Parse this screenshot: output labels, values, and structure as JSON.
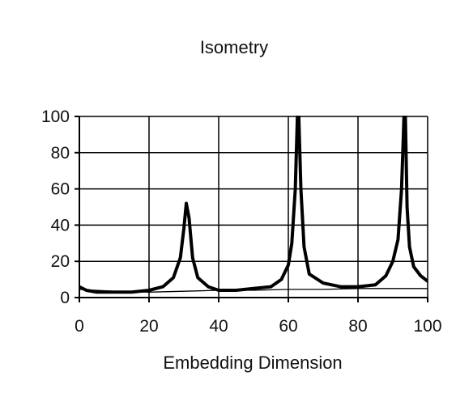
{
  "chart_data": {
    "type": "line",
    "title": "Isometry",
    "xlabel": "Embedding Dimension",
    "ylabel": "",
    "xlim": [
      0,
      100
    ],
    "ylim": [
      0,
      100
    ],
    "xticks": [
      0,
      20,
      40,
      60,
      80,
      100
    ],
    "yticks": [
      0,
      20,
      40,
      60,
      80,
      100
    ],
    "grid": true,
    "legend": "none",
    "series": [
      {
        "color": "#000000",
        "style": "thick",
        "x": [
          0,
          2,
          5,
          10,
          15,
          20,
          24,
          27,
          29,
          30,
          30.7,
          31.5,
          32.5,
          34,
          37,
          40,
          45,
          50,
          55,
          58,
          60,
          61,
          62,
          62.6,
          63,
          63.6,
          64.5,
          66,
          70,
          75,
          80,
          85,
          88,
          90,
          91.5,
          92.5,
          93.2,
          93.6,
          94.1,
          94.8,
          96,
          98,
          100
        ],
        "y": [
          6,
          4,
          3,
          3,
          3,
          4,
          6,
          11,
          22,
          38,
          52,
          44,
          22,
          11,
          6,
          4,
          4,
          5,
          6,
          10,
          18,
          30,
          60,
          100,
          100,
          60,
          28,
          13,
          8,
          6,
          6,
          7,
          12,
          20,
          32,
          60,
          100,
          100,
          50,
          28,
          17,
          12,
          9
        ]
      },
      {
        "color": "#000000",
        "style": "thin",
        "x": [
          0,
          10,
          20,
          30,
          40,
          50,
          60,
          70,
          80,
          90,
          100
        ],
        "y": [
          4.5,
          3.5,
          3,
          3.5,
          4,
          4,
          4.5,
          4.5,
          5,
          5,
          5
        ]
      }
    ]
  }
}
